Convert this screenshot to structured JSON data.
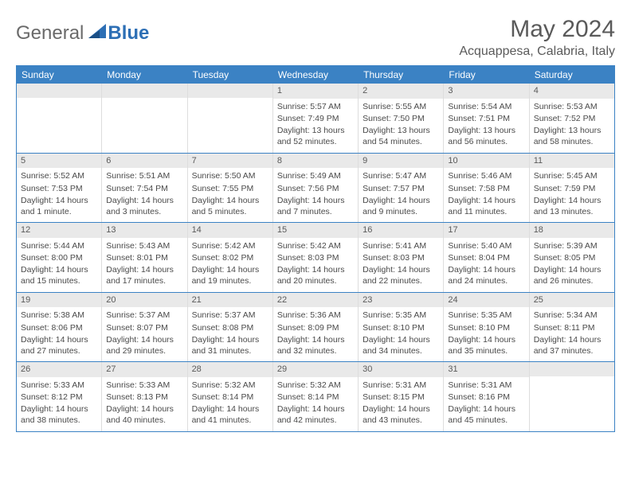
{
  "logo": {
    "general": "General",
    "blue": "Blue"
  },
  "title": "May 2024",
  "location": "Acquappesa, Calabria, Italy",
  "colors": {
    "header_bg": "#3b82c4",
    "header_text": "#ffffff",
    "daynum_bg": "#e9e9e9",
    "text": "#4a4a4a",
    "title_text": "#5a5a5a",
    "logo_gray": "#6a6a6a",
    "logo_blue": "#2d6fb5"
  },
  "weekdays": [
    "Sunday",
    "Monday",
    "Tuesday",
    "Wednesday",
    "Thursday",
    "Friday",
    "Saturday"
  ],
  "weeks": [
    [
      {
        "n": "",
        "sr": "",
        "ss": "",
        "dl": ""
      },
      {
        "n": "",
        "sr": "",
        "ss": "",
        "dl": ""
      },
      {
        "n": "",
        "sr": "",
        "ss": "",
        "dl": ""
      },
      {
        "n": "1",
        "sr": "Sunrise: 5:57 AM",
        "ss": "Sunset: 7:49 PM",
        "dl": "Daylight: 13 hours and 52 minutes."
      },
      {
        "n": "2",
        "sr": "Sunrise: 5:55 AM",
        "ss": "Sunset: 7:50 PM",
        "dl": "Daylight: 13 hours and 54 minutes."
      },
      {
        "n": "3",
        "sr": "Sunrise: 5:54 AM",
        "ss": "Sunset: 7:51 PM",
        "dl": "Daylight: 13 hours and 56 minutes."
      },
      {
        "n": "4",
        "sr": "Sunrise: 5:53 AM",
        "ss": "Sunset: 7:52 PM",
        "dl": "Daylight: 13 hours and 58 minutes."
      }
    ],
    [
      {
        "n": "5",
        "sr": "Sunrise: 5:52 AM",
        "ss": "Sunset: 7:53 PM",
        "dl": "Daylight: 14 hours and 1 minute."
      },
      {
        "n": "6",
        "sr": "Sunrise: 5:51 AM",
        "ss": "Sunset: 7:54 PM",
        "dl": "Daylight: 14 hours and 3 minutes."
      },
      {
        "n": "7",
        "sr": "Sunrise: 5:50 AM",
        "ss": "Sunset: 7:55 PM",
        "dl": "Daylight: 14 hours and 5 minutes."
      },
      {
        "n": "8",
        "sr": "Sunrise: 5:49 AM",
        "ss": "Sunset: 7:56 PM",
        "dl": "Daylight: 14 hours and 7 minutes."
      },
      {
        "n": "9",
        "sr": "Sunrise: 5:47 AM",
        "ss": "Sunset: 7:57 PM",
        "dl": "Daylight: 14 hours and 9 minutes."
      },
      {
        "n": "10",
        "sr": "Sunrise: 5:46 AM",
        "ss": "Sunset: 7:58 PM",
        "dl": "Daylight: 14 hours and 11 minutes."
      },
      {
        "n": "11",
        "sr": "Sunrise: 5:45 AM",
        "ss": "Sunset: 7:59 PM",
        "dl": "Daylight: 14 hours and 13 minutes."
      }
    ],
    [
      {
        "n": "12",
        "sr": "Sunrise: 5:44 AM",
        "ss": "Sunset: 8:00 PM",
        "dl": "Daylight: 14 hours and 15 minutes."
      },
      {
        "n": "13",
        "sr": "Sunrise: 5:43 AM",
        "ss": "Sunset: 8:01 PM",
        "dl": "Daylight: 14 hours and 17 minutes."
      },
      {
        "n": "14",
        "sr": "Sunrise: 5:42 AM",
        "ss": "Sunset: 8:02 PM",
        "dl": "Daylight: 14 hours and 19 minutes."
      },
      {
        "n": "15",
        "sr": "Sunrise: 5:42 AM",
        "ss": "Sunset: 8:03 PM",
        "dl": "Daylight: 14 hours and 20 minutes."
      },
      {
        "n": "16",
        "sr": "Sunrise: 5:41 AM",
        "ss": "Sunset: 8:03 PM",
        "dl": "Daylight: 14 hours and 22 minutes."
      },
      {
        "n": "17",
        "sr": "Sunrise: 5:40 AM",
        "ss": "Sunset: 8:04 PM",
        "dl": "Daylight: 14 hours and 24 minutes."
      },
      {
        "n": "18",
        "sr": "Sunrise: 5:39 AM",
        "ss": "Sunset: 8:05 PM",
        "dl": "Daylight: 14 hours and 26 minutes."
      }
    ],
    [
      {
        "n": "19",
        "sr": "Sunrise: 5:38 AM",
        "ss": "Sunset: 8:06 PM",
        "dl": "Daylight: 14 hours and 27 minutes."
      },
      {
        "n": "20",
        "sr": "Sunrise: 5:37 AM",
        "ss": "Sunset: 8:07 PM",
        "dl": "Daylight: 14 hours and 29 minutes."
      },
      {
        "n": "21",
        "sr": "Sunrise: 5:37 AM",
        "ss": "Sunset: 8:08 PM",
        "dl": "Daylight: 14 hours and 31 minutes."
      },
      {
        "n": "22",
        "sr": "Sunrise: 5:36 AM",
        "ss": "Sunset: 8:09 PM",
        "dl": "Daylight: 14 hours and 32 minutes."
      },
      {
        "n": "23",
        "sr": "Sunrise: 5:35 AM",
        "ss": "Sunset: 8:10 PM",
        "dl": "Daylight: 14 hours and 34 minutes."
      },
      {
        "n": "24",
        "sr": "Sunrise: 5:35 AM",
        "ss": "Sunset: 8:10 PM",
        "dl": "Daylight: 14 hours and 35 minutes."
      },
      {
        "n": "25",
        "sr": "Sunrise: 5:34 AM",
        "ss": "Sunset: 8:11 PM",
        "dl": "Daylight: 14 hours and 37 minutes."
      }
    ],
    [
      {
        "n": "26",
        "sr": "Sunrise: 5:33 AM",
        "ss": "Sunset: 8:12 PM",
        "dl": "Daylight: 14 hours and 38 minutes."
      },
      {
        "n": "27",
        "sr": "Sunrise: 5:33 AM",
        "ss": "Sunset: 8:13 PM",
        "dl": "Daylight: 14 hours and 40 minutes."
      },
      {
        "n": "28",
        "sr": "Sunrise: 5:32 AM",
        "ss": "Sunset: 8:14 PM",
        "dl": "Daylight: 14 hours and 41 minutes."
      },
      {
        "n": "29",
        "sr": "Sunrise: 5:32 AM",
        "ss": "Sunset: 8:14 PM",
        "dl": "Daylight: 14 hours and 42 minutes."
      },
      {
        "n": "30",
        "sr": "Sunrise: 5:31 AM",
        "ss": "Sunset: 8:15 PM",
        "dl": "Daylight: 14 hours and 43 minutes."
      },
      {
        "n": "31",
        "sr": "Sunrise: 5:31 AM",
        "ss": "Sunset: 8:16 PM",
        "dl": "Daylight: 14 hours and 45 minutes."
      },
      {
        "n": "",
        "sr": "",
        "ss": "",
        "dl": ""
      }
    ]
  ]
}
